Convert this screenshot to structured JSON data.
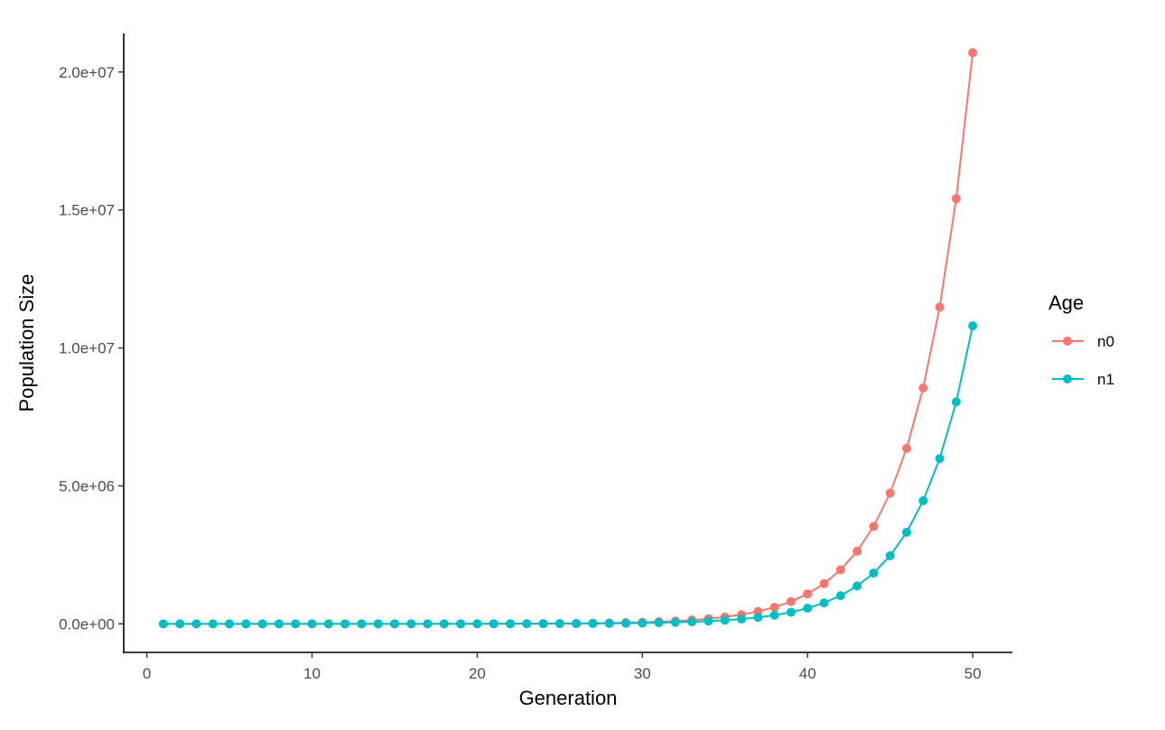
{
  "chart_data": {
    "type": "line",
    "title": "",
    "xlabel": "Generation",
    "ylabel": "Population Size",
    "xlim": [
      -1.4,
      52.4
    ],
    "ylim": [
      -1035000,
      21400000
    ],
    "xticks": [
      0,
      10,
      20,
      30,
      40,
      50
    ],
    "xtick_labels": [
      "0",
      "10",
      "20",
      "30",
      "40",
      "50"
    ],
    "yticks": [
      0,
      5000000,
      10000000,
      15000000,
      20000000
    ],
    "ytick_labels": [
      "0.0e+00",
      "5.0e+06",
      "1.0e+07",
      "1.5e+07",
      "2.0e+07"
    ],
    "grid": false,
    "legend": {
      "title": "Age",
      "placement": "right"
    },
    "x": [
      1,
      2,
      3,
      4,
      5,
      6,
      7,
      8,
      9,
      10,
      11,
      12,
      13,
      14,
      15,
      16,
      17,
      18,
      19,
      20,
      21,
      22,
      23,
      24,
      25,
      26,
      27,
      28,
      29,
      30,
      31,
      32,
      33,
      34,
      35,
      36,
      37,
      38,
      39,
      40,
      41,
      42,
      43,
      44,
      45,
      46,
      47,
      48,
      49,
      50
    ],
    "series": [
      {
        "name": "n0",
        "color": "#F8766D",
        "values": [
          11,
          15,
          20,
          27,
          36,
          48,
          65,
          87,
          117,
          157,
          211,
          283,
          380,
          511,
          686,
          921,
          1237,
          1660,
          2230,
          3000,
          4000,
          5400,
          7200,
          9700,
          13000,
          17500,
          23500,
          31500,
          42400,
          56900,
          76400,
          102600,
          138000,
          185000,
          248000,
          333000,
          448000,
          602000,
          808000,
          1085000,
          1457000,
          1957000,
          2630000,
          3530000,
          4740000,
          6360000,
          8550000,
          11480000,
          15410000,
          20700000
        ]
      },
      {
        "name": "n1",
        "color": "#00BFC4",
        "values": [
          6,
          8,
          10,
          14,
          19,
          25,
          34,
          45,
          61,
          82,
          110,
          148,
          198,
          267,
          358,
          480,
          645,
          866,
          1163,
          1570,
          2090,
          2820,
          3760,
          5060,
          6780,
          9130,
          12260,
          16400,
          22100,
          29700,
          39900,
          53500,
          72000,
          96500,
          129400,
          173700,
          233700,
          314000,
          421500,
          566000,
          760000,
          1021000,
          1372000,
          1840000,
          2470000,
          3320000,
          4460000,
          5990000,
          8040000,
          10800000
        ]
      }
    ]
  }
}
